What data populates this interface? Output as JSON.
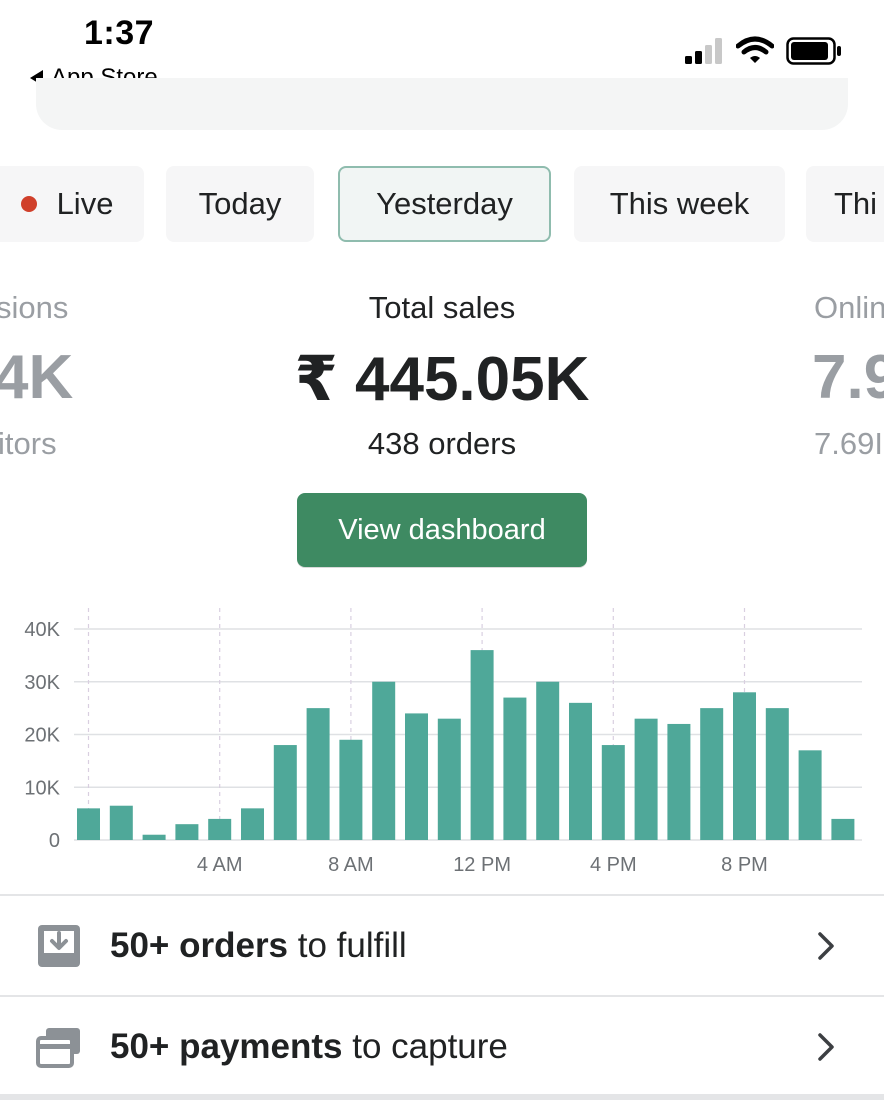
{
  "status_bar": {
    "time": "1:37",
    "back_label": "App Store"
  },
  "tabs": [
    {
      "label": "Live",
      "has_dot": true
    },
    {
      "label": "Today"
    },
    {
      "label": "Yesterday",
      "selected": true
    },
    {
      "label": "This week"
    },
    {
      "label": "Thi"
    }
  ],
  "metrics": {
    "left": {
      "label": "sions",
      "value": "4K",
      "sub": "itors"
    },
    "center": {
      "label": "Total sales",
      "value": "₹ 445.05K",
      "sub": "438 orders"
    },
    "right": {
      "label": "Onlin",
      "value": "7.9",
      "sub": "7.69I"
    }
  },
  "dashboard_button": "View dashboard",
  "chart_data": {
    "type": "bar",
    "ylim": [
      0,
      40000
    ],
    "y_ticks": [
      "0",
      "10K",
      "20K",
      "30K",
      "40K"
    ],
    "y_tick_values": [
      0,
      10000,
      20000,
      30000,
      40000
    ],
    "x_ticks": [
      {
        "label": "4 AM",
        "hour": 4
      },
      {
        "label": "8 AM",
        "hour": 8
      },
      {
        "label": "12 PM",
        "hour": 12
      },
      {
        "label": "4 PM",
        "hour": 16
      },
      {
        "label": "8 PM",
        "hour": 20
      }
    ],
    "hours": [
      0,
      1,
      2,
      3,
      4,
      5,
      6,
      7,
      8,
      9,
      10,
      11,
      12,
      13,
      14,
      15,
      16,
      17,
      18,
      19,
      20,
      21,
      22,
      23
    ],
    "values": [
      6000,
      6500,
      1000,
      3000,
      4000,
      6000,
      18000,
      25000,
      19000,
      30000,
      24000,
      23000,
      36000,
      27000,
      30000,
      26000,
      18000,
      23000,
      22000,
      25000,
      28000,
      25000,
      17000,
      4000
    ],
    "bar_color": "#4fa899",
    "grid": true
  },
  "tasks": [
    {
      "bold": "50+ orders",
      "rest": " to fulfill",
      "icon": "download-tray-icon"
    },
    {
      "bold": "50+ payments",
      "rest": " to capture",
      "icon": "credit-card-icon"
    }
  ]
}
